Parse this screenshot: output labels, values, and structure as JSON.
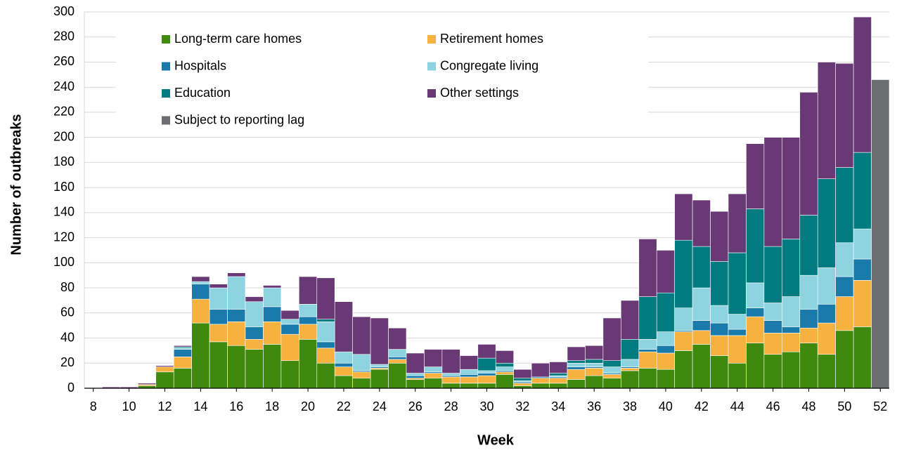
{
  "chart_data": {
    "type": "stacked-bar",
    "x": [
      8,
      9,
      10,
      11,
      12,
      13,
      14,
      15,
      16,
      17,
      18,
      19,
      20,
      21,
      22,
      23,
      24,
      25,
      26,
      27,
      28,
      29,
      30,
      31,
      32,
      33,
      34,
      35,
      36,
      37,
      38,
      39,
      40,
      41,
      42,
      43,
      44,
      45,
      46,
      47,
      48,
      49,
      50,
      51,
      52
    ],
    "xlim": [
      7.5,
      52.5
    ],
    "xticks": [
      8,
      10,
      12,
      14,
      16,
      18,
      20,
      22,
      24,
      26,
      28,
      30,
      32,
      34,
      36,
      38,
      40,
      42,
      44,
      46,
      48,
      50,
      52
    ],
    "ylim": [
      0,
      300
    ],
    "yticks": [
      0,
      20,
      40,
      60,
      80,
      100,
      120,
      140,
      160,
      180,
      200,
      220,
      240,
      260,
      280,
      300
    ],
    "grid": true,
    "x_label": "Week",
    "y_label": "Number of outbreaks",
    "series": [
      {
        "name": "Long-term care homes",
        "color": "#3f8a0d",
        "values": [
          0,
          0,
          0,
          2,
          13,
          16,
          52,
          37,
          34,
          31,
          35,
          22,
          39,
          20,
          10,
          8,
          15,
          20,
          7,
          8,
          4,
          4,
          4,
          11,
          2,
          4,
          4,
          7,
          10,
          8,
          14,
          16,
          15,
          30,
          35,
          26,
          20,
          36,
          27,
          29,
          36,
          27,
          46,
          49,
          0
        ]
      },
      {
        "name": "Retirement homes",
        "color": "#f6b13e",
        "values": [
          0,
          0,
          0,
          1,
          4,
          9,
          19,
          14,
          19,
          8,
          18,
          21,
          12,
          12,
          7,
          5,
          1,
          3,
          1,
          4,
          5,
          5,
          6,
          2,
          2,
          4,
          4,
          8,
          6,
          3,
          2,
          13,
          13,
          15,
          11,
          16,
          22,
          21,
          17,
          15,
          12,
          25,
          27,
          37,
          0
        ]
      },
      {
        "name": "Hospitals",
        "color": "#1a7bab",
        "values": [
          0,
          0,
          0,
          0,
          0,
          6,
          12,
          12,
          10,
          10,
          12,
          8,
          6,
          5,
          3,
          1,
          1,
          2,
          2,
          1,
          1,
          2,
          2,
          1,
          1,
          1,
          1,
          2,
          1,
          1,
          1,
          2,
          6,
          1,
          8,
          10,
          5,
          7,
          10,
          5,
          15,
          15,
          16,
          17,
          0
        ]
      },
      {
        "name": "Congregate living",
        "color": "#8dd4e0",
        "values": [
          0,
          0,
          0,
          0,
          0,
          1,
          2,
          17,
          26,
          20,
          15,
          4,
          10,
          16,
          9,
          13,
          2,
          6,
          2,
          4,
          2,
          4,
          2,
          3,
          1,
          0,
          1,
          3,
          3,
          5,
          6,
          8,
          11,
          18,
          26,
          14,
          12,
          20,
          14,
          24,
          27,
          29,
          27,
          24,
          0
        ]
      },
      {
        "name": "Education",
        "color": "#007c80",
        "values": [
          0,
          0,
          0,
          0,
          0,
          1,
          0,
          0,
          0,
          0,
          0,
          0,
          0,
          2,
          0,
          0,
          0,
          0,
          0,
          0,
          0,
          0,
          10,
          3,
          2,
          0,
          2,
          2,
          3,
          5,
          16,
          34,
          31,
          54,
          33,
          35,
          49,
          59,
          45,
          46,
          48,
          71,
          60,
          61,
          0
        ]
      },
      {
        "name": "Other settings",
        "color": "#693975",
        "values": [
          0,
          1,
          1,
          1,
          1,
          1,
          4,
          3,
          3,
          4,
          2,
          7,
          22,
          33,
          40,
          30,
          37,
          17,
          16,
          14,
          19,
          11,
          11,
          10,
          7,
          11,
          9,
          11,
          11,
          34,
          31,
          46,
          34,
          37,
          37,
          40,
          47,
          52,
          87,
          81,
          98,
          93,
          83,
          108,
          0
        ]
      },
      {
        "name": "Subject to reporting lag",
        "color": "#6d6e71",
        "values": [
          0,
          0,
          0,
          0,
          0,
          0,
          0,
          0,
          0,
          0,
          0,
          0,
          0,
          0,
          0,
          0,
          0,
          0,
          0,
          0,
          0,
          0,
          0,
          0,
          0,
          0,
          0,
          0,
          0,
          0,
          0,
          0,
          0,
          0,
          0,
          0,
          0,
          0,
          0,
          0,
          0,
          0,
          0,
          0,
          246
        ]
      }
    ]
  }
}
